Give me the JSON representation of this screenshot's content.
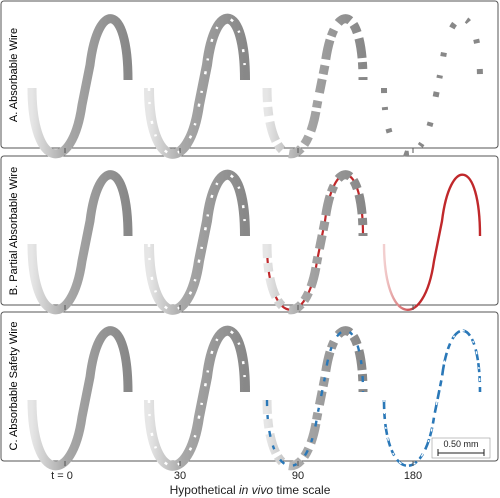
{
  "rows": [
    {
      "label": "A. Absorbable Wire",
      "color": "#222222",
      "type": "absorbable"
    },
    {
      "label": "B. Partial Absorbable Wire",
      "color": "#c0282b",
      "type": "partial"
    },
    {
      "label": "C. Absorbable Safety Wire",
      "color": "#2a78b8",
      "type": "safety"
    }
  ],
  "timepoints": [
    "t = 0",
    "30",
    "90",
    "180"
  ],
  "xaxis": {
    "prefix": "Hypothetical ",
    "italic": "in vivo",
    "suffix": " time scale"
  },
  "scalebar": {
    "label": "0.50 mm"
  },
  "colors": {
    "wire": "#8c8c8c",
    "frame": "#555555",
    "red": "#c0282b",
    "blue": "#2a78b8"
  }
}
